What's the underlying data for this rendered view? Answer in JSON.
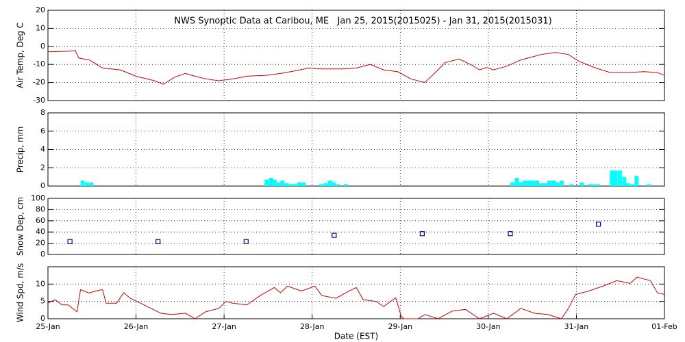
{
  "chart_data": [
    {
      "type": "line",
      "title": "NWS Synoptic Data at Caribou, ME   Jan 25, 2015(2015025) - Jan 31, 2015(2015031)",
      "y_label": "Air Temp, Deg C",
      "color": "#cc0000",
      "x": [
        0.0,
        0.23,
        0.31,
        0.35,
        0.47,
        0.62,
        0.82,
        1.01,
        1.21,
        1.31,
        1.44,
        1.56,
        1.67,
        1.79,
        1.94,
        2.1,
        2.26,
        2.49,
        2.64,
        2.8,
        2.96,
        3.11,
        3.34,
        3.5,
        3.66,
        3.81,
        3.97,
        4.12,
        4.28,
        4.43,
        4.51,
        4.67,
        4.82,
        4.9,
        4.98,
        5.06,
        5.21,
        5.37,
        5.6,
        5.76,
        5.91,
        6.03,
        6.22,
        6.38,
        6.61,
        6.77,
        6.92,
        7.0
      ],
      "values": [
        -3,
        -2.7,
        -2.3,
        -6.5,
        -7.5,
        -12,
        -13,
        -16.7,
        -19,
        -21,
        -17,
        -15,
        -16.5,
        -18,
        -19,
        -18,
        -16.5,
        -16,
        -15,
        -13.6,
        -12,
        -12.5,
        -12.5,
        -12,
        -10,
        -13,
        -14,
        -18,
        -20,
        -13,
        -9,
        -7,
        -10.6,
        -13,
        -11.7,
        -13,
        -11,
        -7.5,
        -4.5,
        -3.4,
        -4.5,
        -8.3,
        -12,
        -14.4,
        -14.4,
        -14,
        -14.5,
        -16
      ],
      "ylim": [
        -30,
        20
      ],
      "yticks": [
        -30,
        -20,
        -10,
        0,
        10,
        20
      ],
      "grid": true
    },
    {
      "type": "bar",
      "y_label": "Precip, mm",
      "color": "#00ffff",
      "x": [
        0.37,
        0.42,
        0.47,
        2.46,
        2.51,
        2.55,
        2.6,
        2.64,
        2.69,
        2.74,
        2.78,
        2.83,
        2.88,
        3.08,
        3.13,
        3.18,
        3.22,
        3.27,
        3.36,
        5.25,
        5.3,
        5.34,
        5.39,
        5.44,
        5.48,
        5.53,
        5.58,
        5.62,
        5.67,
        5.72,
        5.76,
        5.81,
        5.92,
        6.04,
        6.13,
        6.18,
        6.22,
        6.38,
        6.42,
        6.47,
        6.52,
        6.56,
        6.61,
        6.66,
        6.8
      ],
      "values": [
        0.6,
        0.4,
        0.4,
        0.7,
        0.9,
        0.7,
        0.4,
        0.6,
        0.3,
        0.2,
        0.2,
        0.4,
        0.4,
        0.2,
        0.3,
        0.6,
        0.4,
        0.2,
        0.2,
        0.4,
        0.9,
        0.4,
        0.6,
        0.6,
        0.6,
        0.6,
        0.3,
        0.3,
        0.6,
        0.6,
        0.4,
        0.6,
        0.2,
        0.4,
        0.2,
        0.2,
        0.2,
        1.7,
        1.7,
        1.7,
        1.0,
        0.3,
        0.2,
        1.1,
        0.2
      ],
      "ylim": [
        0,
        8
      ],
      "yticks": [
        0,
        2,
        4,
        6,
        8
      ],
      "grid": true
    },
    {
      "type": "scatter",
      "y_label": "Snow Dep, cm",
      "color": "#000099",
      "x": [
        0.25,
        1.25,
        2.25,
        3.25,
        4.25,
        5.25,
        6.25
      ],
      "values": [
        23,
        23,
        23,
        34,
        37,
        37,
        54
      ],
      "ylim": [
        0,
        100
      ],
      "yticks": [
        0,
        20,
        40,
        60,
        80,
        100
      ],
      "grid": true
    },
    {
      "type": "line",
      "y_label": "Wind Spd, m/s",
      "x_label": "Date (EST)",
      "color": "#cc0000",
      "x": [
        0.0,
        0.08,
        0.16,
        0.23,
        0.33,
        0.37,
        0.47,
        0.54,
        0.62,
        0.66,
        0.78,
        0.86,
        0.93,
        1.01,
        1.09,
        1.17,
        1.28,
        1.4,
        1.56,
        1.67,
        1.79,
        1.94,
        2.02,
        2.1,
        2.26,
        2.41,
        2.57,
        2.64,
        2.72,
        2.88,
        3.03,
        3.11,
        3.27,
        3.42,
        3.5,
        3.58,
        3.73,
        3.81,
        3.89,
        3.95,
        4.01,
        4.04,
        4.2,
        4.28,
        4.43,
        4.59,
        4.74,
        4.9,
        5.06,
        5.21,
        5.37,
        5.52,
        5.68,
        5.83,
        5.91,
        5.99,
        6.14,
        6.3,
        6.46,
        6.61,
        6.69,
        6.84,
        6.92,
        7.0
      ],
      "values": [
        4.5,
        5.5,
        4,
        4,
        2,
        8.4,
        7.4,
        8,
        8.4,
        4.5,
        4.5,
        7.5,
        6,
        5,
        4,
        3,
        1.6,
        1.2,
        1.6,
        0,
        2,
        3,
        5,
        4.5,
        4,
        6.7,
        9,
        7.5,
        9.4,
        8,
        9.4,
        6.7,
        5.9,
        8,
        9,
        5.5,
        5,
        3.5,
        5,
        6,
        0.8,
        0,
        0,
        1.2,
        0,
        2.2,
        2.7,
        0,
        1.6,
        0,
        3,
        1.6,
        1.2,
        0,
        3,
        7,
        8,
        9.4,
        11,
        10.2,
        12,
        11,
        7.5,
        7
      ],
      "ylim": [
        0,
        15
      ],
      "yticks": [
        0,
        5,
        10
      ],
      "grid": true,
      "xlim": [
        0,
        7
      ],
      "xticks": [
        {
          "value": 0,
          "label": "25-Jan"
        },
        {
          "value": 1,
          "label": "26-Jan"
        },
        {
          "value": 2,
          "label": "27-Jan"
        },
        {
          "value": 3,
          "label": "28-Jan"
        },
        {
          "value": 4,
          "label": "29-Jan"
        },
        {
          "value": 5,
          "label": "30-Jan"
        },
        {
          "value": 6,
          "label": "31-Jan"
        },
        {
          "value": 7,
          "label": "01-Feb"
        }
      ]
    }
  ]
}
